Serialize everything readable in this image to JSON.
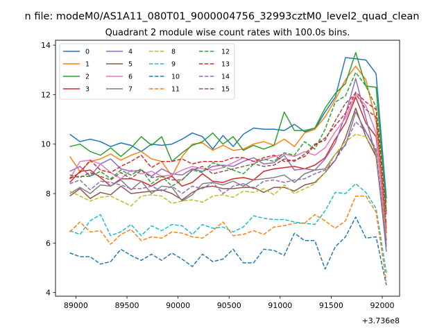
{
  "suptitle": "n file: modeM0/AS1A11_080T01_9000004756_32993cztM0_level2_quad_clean",
  "chart_data": {
    "type": "line",
    "title": "Quadrant 2 module wise count rates with 100.0s bins.",
    "xlabel": "",
    "ylabel": "",
    "x_offset_label": "+3.736e8",
    "xlim": [
      88800,
      92170
    ],
    "ylim": [
      3.85,
      14.2
    ],
    "xticks": [
      89000,
      89500,
      90000,
      90500,
      91000,
      91500,
      92000
    ],
    "yticks": [
      4,
      6,
      8,
      10,
      12,
      14
    ],
    "legend": {
      "position": "top-left",
      "ncol": 4
    },
    "grid": false,
    "x": [
      88940,
      89040,
      89140,
      89240,
      89340,
      89440,
      89540,
      89640,
      89740,
      89840,
      89940,
      90040,
      90140,
      90240,
      90340,
      90440,
      90540,
      90640,
      90740,
      90840,
      90940,
      91040,
      91140,
      91240,
      91340,
      91440,
      91540,
      91640,
      91740,
      91840,
      91940,
      92040
    ],
    "series": [
      {
        "name": "0",
        "color": "#1f77b4",
        "dash": "solid",
        "values": [
          10.4,
          10.1,
          10.2,
          10.1,
          9.9,
          10.05,
          9.95,
          9.7,
          10.0,
          9.95,
          10.0,
          10.2,
          10.45,
          10.3,
          9.8,
          10.35,
          9.9,
          10.4,
          10.65,
          10.6,
          10.6,
          10.55,
          10.8,
          10.5,
          10.6,
          11.3,
          11.9,
          13.5,
          13.45,
          13.4,
          12.85,
          7.8
        ]
      },
      {
        "name": "1",
        "color": "#ff7f0e",
        "dash": "solid",
        "values": [
          9.5,
          8.9,
          9.3,
          9.4,
          9.6,
          9.35,
          9.55,
          9.7,
          9.4,
          9.3,
          8.7,
          9.5,
          10.0,
          10.05,
          9.75,
          9.95,
          9.75,
          9.8,
          10.0,
          10.1,
          9.95,
          10.2,
          9.9,
          10.45,
          10.6,
          11.1,
          11.8,
          12.6,
          13.15,
          12.6,
          10.9,
          6.6
        ]
      },
      {
        "name": "2",
        "color": "#2ca02c",
        "dash": "solid",
        "values": [
          9.9,
          10.0,
          9.7,
          9.55,
          9.85,
          9.5,
          9.85,
          10.3,
          9.95,
          10.3,
          9.3,
          9.65,
          9.95,
          10.1,
          10.45,
          10.0,
          10.3,
          9.75,
          9.95,
          9.8,
          9.95,
          11.3,
          10.55,
          10.55,
          10.65,
          11.45,
          12.05,
          12.45,
          13.7,
          12.35,
          12.3,
          7.3
        ]
      },
      {
        "name": "3",
        "color": "#d62728",
        "dash": "solid",
        "values": [
          8.45,
          8.9,
          8.95,
          8.65,
          8.3,
          8.6,
          8.6,
          8.5,
          8.3,
          8.55,
          8.7,
          8.3,
          8.45,
          8.8,
          8.5,
          8.45,
          8.6,
          8.65,
          8.55,
          8.9,
          9.0,
          9.05,
          9.1,
          9.0,
          9.15,
          9.45,
          10.2,
          10.85,
          11.9,
          10.85,
          10.3,
          6.4
        ]
      },
      {
        "name": "4",
        "color": "#9467bd",
        "dash": "solid",
        "values": [
          8.9,
          9.1,
          8.7,
          9.2,
          9.4,
          9.0,
          8.9,
          8.95,
          8.7,
          9.0,
          8.8,
          8.75,
          9.0,
          8.9,
          9.1,
          9.15,
          9.1,
          9.3,
          9.45,
          9.2,
          9.25,
          9.55,
          8.95,
          9.0,
          8.95,
          9.4,
          10.05,
          11.2,
          12.65,
          11.05,
          9.5,
          5.85
        ]
      },
      {
        "name": "5",
        "color": "#8c564b",
        "dash": "solid",
        "values": [
          7.9,
          8.2,
          7.8,
          8.05,
          7.95,
          8.3,
          8.0,
          8.05,
          8.1,
          8.15,
          8.0,
          7.75,
          8.05,
          8.25,
          8.3,
          8.2,
          8.2,
          8.25,
          8.25,
          8.05,
          8.25,
          8.25,
          8.1,
          8.35,
          8.45,
          8.85,
          9.35,
          10.25,
          11.45,
          10.3,
          9.5,
          6.1
        ]
      },
      {
        "name": "6",
        "color": "#e377c2",
        "dash": "solid",
        "values": [
          8.6,
          9.3,
          9.35,
          9.2,
          8.85,
          8.6,
          8.95,
          8.8,
          8.9,
          8.7,
          8.75,
          8.95,
          9.1,
          9.0,
          8.95,
          9.05,
          9.25,
          9.45,
          9.3,
          9.35,
          9.5,
          9.6,
          9.5,
          9.7,
          9.55,
          9.85,
          10.5,
          11.05,
          12.0,
          11.55,
          10.45,
          6.2
        ]
      },
      {
        "name": "7",
        "color": "#7f7f7f",
        "dash": "solid",
        "values": [
          8.0,
          8.25,
          8.0,
          8.35,
          8.3,
          8.55,
          8.15,
          8.5,
          8.0,
          8.3,
          8.25,
          7.7,
          7.95,
          8.4,
          8.45,
          8.35,
          8.5,
          8.3,
          8.55,
          8.6,
          8.65,
          8.75,
          8.45,
          8.8,
          8.95,
          9.0,
          9.6,
          9.95,
          11.3,
          10.5,
          9.7,
          5.65
        ]
      },
      {
        "name": "8",
        "color": "#bcbd22",
        "dash": "dashed",
        "values": [
          8.1,
          7.9,
          7.7,
          7.85,
          7.9,
          7.7,
          7.5,
          7.9,
          7.95,
          7.9,
          7.6,
          7.7,
          7.75,
          7.65,
          7.9,
          7.95,
          7.85,
          8.1,
          8.05,
          8.2,
          7.95,
          8.35,
          8.0,
          8.2,
          8.4,
          8.85,
          9.6,
          10.1,
          10.4,
          10.3,
          9.6,
          6.2
        ]
      },
      {
        "name": "9",
        "color": "#17becf",
        "dash": "dashed",
        "values": [
          6.5,
          6.35,
          6.9,
          7.15,
          6.3,
          6.45,
          6.75,
          6.3,
          6.7,
          6.5,
          6.75,
          6.7,
          6.35,
          6.75,
          6.6,
          6.65,
          6.45,
          6.65,
          7.1,
          7.0,
          6.95,
          6.95,
          6.85,
          6.8,
          6.75,
          7.3,
          8.05,
          8.0,
          8.4,
          8.05,
          7.4,
          4.8
        ]
      },
      {
        "name": "10",
        "color": "#1f77b4",
        "dash": "dashed",
        "values": [
          5.6,
          5.45,
          5.45,
          5.15,
          5.25,
          5.75,
          5.5,
          5.3,
          5.55,
          5.3,
          5.6,
          5.35,
          5.05,
          5.55,
          5.25,
          5.35,
          5.75,
          5.2,
          5.2,
          5.75,
          5.7,
          5.5,
          6.4,
          6.1,
          6.1,
          4.95,
          5.85,
          6.25,
          7.05,
          6.2,
          6.25,
          4.3
        ]
      },
      {
        "name": "11",
        "color": "#ff7f0e",
        "dash": "dashed",
        "values": [
          6.45,
          6.85,
          6.45,
          6.5,
          5.95,
          6.35,
          6.55,
          6.1,
          6.25,
          6.2,
          6.45,
          6.4,
          6.25,
          6.2,
          6.5,
          6.85,
          6.3,
          6.35,
          6.5,
          6.35,
          6.65,
          6.7,
          6.8,
          6.8,
          7.15,
          6.9,
          6.6,
          6.9,
          7.9,
          7.9,
          7.25,
          4.45
        ]
      },
      {
        "name": "12",
        "color": "#2ca02c",
        "dash": "dashed",
        "values": [
          8.65,
          8.7,
          8.7,
          8.9,
          8.6,
          8.95,
          8.75,
          9.0,
          8.4,
          8.7,
          8.3,
          8.55,
          8.95,
          8.85,
          9.25,
          9.1,
          8.95,
          8.8,
          9.2,
          9.4,
          9.3,
          9.65,
          9.55,
          10.1,
          9.8,
          10.6,
          11.7,
          11.95,
          12.9,
          12.35,
          11.5,
          7.6
        ]
      },
      {
        "name": "13",
        "color": "#d62728",
        "dash": "dashed",
        "values": [
          8.6,
          8.85,
          9.35,
          8.95,
          8.85,
          9.1,
          9.3,
          9.55,
          9.05,
          9.3,
          9.3,
          9.4,
          9.2,
          9.3,
          9.3,
          9.3,
          9.45,
          9.45,
          9.3,
          9.45,
          9.55,
          9.3,
          9.35,
          9.5,
          9.95,
          10.25,
          10.75,
          11.25,
          12.1,
          11.7,
          11.4,
          7.1
        ]
      },
      {
        "name": "14",
        "color": "#9467bd",
        "dash": "dashed",
        "values": [
          8.4,
          8.55,
          8.15,
          8.5,
          8.45,
          8.35,
          8.2,
          8.2,
          8.3,
          8.1,
          8.3,
          8.0,
          8.3,
          8.2,
          8.45,
          8.0,
          8.3,
          8.4,
          8.2,
          8.5,
          8.55,
          8.45,
          8.55,
          8.6,
          8.8,
          8.95,
          9.35,
          10.0,
          10.9,
          10.5,
          9.8,
          5.9
        ]
      },
      {
        "name": "15",
        "color": "#8c564b",
        "dash": "dashed",
        "values": [
          8.75,
          8.65,
          8.85,
          8.7,
          8.55,
          8.85,
          8.6,
          8.95,
          8.65,
          8.7,
          8.55,
          8.55,
          8.95,
          9.1,
          8.8,
          8.9,
          9.0,
          9.1,
          9.2,
          9.1,
          9.15,
          9.4,
          9.3,
          9.6,
          10.0,
          10.15,
          10.95,
          11.65,
          12.05,
          11.4,
          11.1,
          6.75
        ]
      }
    ]
  }
}
